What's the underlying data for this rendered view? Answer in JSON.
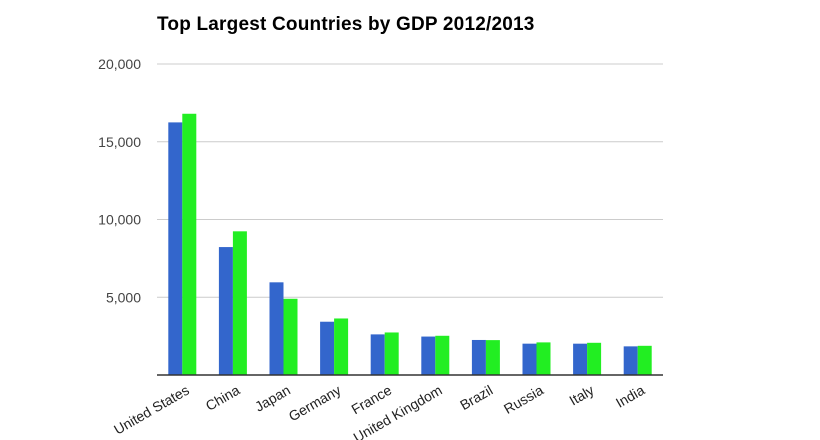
{
  "chart_data": {
    "type": "bar",
    "title": "Top Largest Countries by GDP 2012/2013",
    "xlabel": "",
    "ylabel": "",
    "categories": [
      "United States",
      "China",
      "Japan",
      "Germany",
      "France",
      "United Kingdom",
      "Brazil",
      "Russia",
      "Italy",
      "India"
    ],
    "series": [
      {
        "color": "#3366cc",
        "values": [
          16245,
          8227,
          5960,
          3426,
          2612,
          2472,
          2253,
          2015,
          2014,
          1842
        ]
      },
      {
        "color": "#22ee22",
        "values": [
          16800,
          9240,
          4902,
          3635,
          2735,
          2522,
          2243,
          2097,
          2071,
          1877
        ]
      }
    ],
    "yticks": [
      "20,000",
      "15,000",
      "10,000",
      "5,000"
    ],
    "ylim": [
      0,
      20000
    ],
    "grid": true,
    "legend": "none"
  }
}
